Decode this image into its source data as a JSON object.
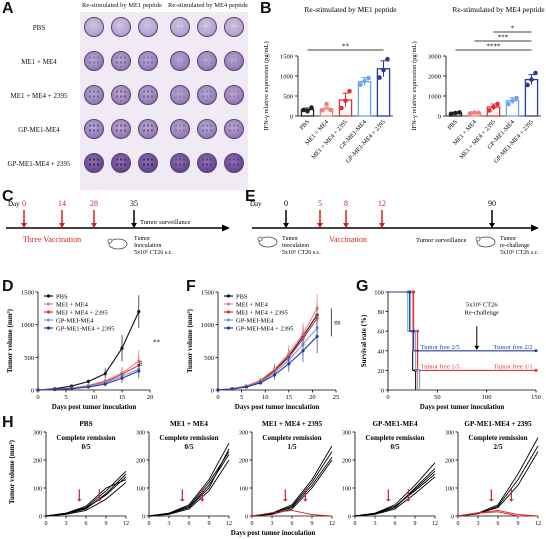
{
  "panels": {
    "A": "A",
    "B": "B",
    "C": "C",
    "D": "D",
    "E": "E",
    "F": "F",
    "G": "G",
    "H": "H"
  },
  "elispot": {
    "col_headers": [
      "Re-stimulated by ME1 peptide",
      "Re-stimulated by ME4 peptide"
    ],
    "rows": [
      "PBS",
      "ME1 + ME4",
      "ME1 + ME4 + 2395",
      "GP-ME1-ME4",
      "GP-ME1-ME4 + 2395"
    ]
  },
  "chart_data": [
    {
      "id": "B1",
      "type": "bar",
      "title": "Re-stimulated by ME1 peptide",
      "ylabel": "IFN-γ relative expression (pg/mL)",
      "categories": [
        "PBS",
        "ME1 + ME4",
        "ME1 + ME4 + 2395",
        "GP-ME1-ME4",
        "GP-ME1-ME4 + 2395"
      ],
      "values": [
        160,
        180,
        400,
        860,
        1180
      ],
      "errors": [
        40,
        40,
        170,
        100,
        200
      ],
      "points": [
        [
          150,
          120,
          210
        ],
        [
          140,
          300,
          150
        ],
        [
          200,
          380,
          620
        ],
        [
          780,
          870,
          950
        ],
        [
          960,
          1150,
          1420
        ]
      ],
      "colors": [
        "#222222",
        "#f08080",
        "#e03030",
        "#6aa6e8",
        "#2a3a9a"
      ],
      "ylim": [
        0,
        1500
      ],
      "yticks": [
        0,
        500,
        1000,
        1500
      ],
      "significance": [
        {
          "from": 0,
          "to": 4,
          "label": "**"
        }
      ]
    },
    {
      "id": "B2",
      "type": "bar",
      "title": "Re-stimulated by ME4 peptide",
      "ylabel": "IFN-γ relative expression (pg/mL)",
      "categories": [
        "PBS",
        "ME1 + ME4",
        "ME1 + ME4 + 2395",
        "GP-ME1-ME4",
        "GP-ME1-ME4 + 2395"
      ],
      "values": [
        150,
        160,
        450,
        760,
        1820
      ],
      "errors": [
        30,
        20,
        150,
        150,
        250
      ],
      "points": [
        [
          110,
          150,
          180
        ],
        [
          140,
          170,
          160
        ],
        [
          280,
          450,
          600
        ],
        [
          600,
          760,
          900
        ],
        [
          1550,
          1820,
          2150
        ]
      ],
      "colors": [
        "#222222",
        "#f08080",
        "#e03030",
        "#6aa6e8",
        "#2a3a9a"
      ],
      "ylim": [
        0,
        3000
      ],
      "yticks": [
        0,
        1000,
        2000,
        3000
      ],
      "significance": [
        {
          "from": 0,
          "to": 4,
          "label": "****"
        },
        {
          "from": 1,
          "to": 4,
          "label": "***"
        },
        {
          "from": 2,
          "to": 4,
          "label": "*"
        }
      ]
    },
    {
      "id": "D",
      "type": "line",
      "xlabel": "Days post tumor inoculation",
      "ylabel": "Tumor volume (mm³)",
      "xlim": [
        0,
        20
      ],
      "xticks": [
        0,
        5,
        10,
        15,
        20
      ],
      "ylim": [
        0,
        1500
      ],
      "yticks": [
        0,
        500,
        1000,
        1500
      ],
      "x": [
        0,
        3,
        6,
        9,
        12,
        15,
        18
      ],
      "series": [
        {
          "name": "PBS",
          "color": "#111111",
          "values": [
            0,
            20,
            60,
            130,
            250,
            640,
            1200
          ],
          "errors": [
            0,
            5,
            15,
            30,
            80,
            200,
            250
          ]
        },
        {
          "name": "MEI + ME4",
          "color": "#f08080",
          "values": [
            0,
            10,
            30,
            70,
            140,
            260,
            440
          ],
          "errors": [
            0,
            3,
            10,
            20,
            50,
            100,
            170
          ]
        },
        {
          "name": "MEI + ME4 + 2395",
          "color": "#e03030",
          "values": [
            0,
            10,
            25,
            60,
            120,
            240,
            380
          ],
          "errors": [
            0,
            3,
            10,
            20,
            40,
            90,
            150
          ]
        },
        {
          "name": "GP-MEI-ME4",
          "color": "#6aa6e8",
          "values": [
            0,
            10,
            25,
            55,
            110,
            210,
            320
          ],
          "errors": [
            0,
            3,
            8,
            15,
            40,
            80,
            120
          ]
        },
        {
          "name": "GP-ME1-ME4 + 2395",
          "color": "#2a3a9a",
          "values": [
            0,
            8,
            20,
            45,
            90,
            180,
            290
          ],
          "errors": [
            0,
            3,
            8,
            15,
            35,
            70,
            110
          ]
        }
      ],
      "annotations": [
        "**",
        "ns"
      ]
    },
    {
      "id": "F",
      "type": "line",
      "xlabel": "Days post tumor inoculation",
      "ylabel": "Tumor volume (mm³)",
      "xlim": [
        0,
        25
      ],
      "xticks": [
        0,
        5,
        10,
        15,
        20,
        25
      ],
      "ylim": [
        0,
        1500
      ],
      "yticks": [
        0,
        500,
        1000,
        1500
      ],
      "x": [
        0,
        3,
        6,
        9,
        12,
        15,
        18,
        21
      ],
      "series": [
        {
          "name": "PBS",
          "color": "#111111",
          "values": [
            0,
            20,
            60,
            140,
            300,
            520,
            820,
            1150
          ],
          "errors": [
            0,
            5,
            15,
            40,
            80,
            120,
            160,
            200
          ]
        },
        {
          "name": "MEI + ME4",
          "color": "#f08080",
          "values": [
            0,
            20,
            60,
            150,
            320,
            560,
            860,
            1250
          ],
          "errors": [
            0,
            5,
            15,
            40,
            90,
            130,
            170,
            220
          ]
        },
        {
          "name": "MEI + ME4 + 2395",
          "color": "#e03030",
          "values": [
            0,
            18,
            55,
            130,
            290,
            500,
            780,
            1100
          ],
          "errors": [
            0,
            5,
            15,
            35,
            80,
            120,
            160,
            200
          ]
        },
        {
          "name": "GP-MEI-ME4",
          "color": "#6aa6e8",
          "values": [
            0,
            18,
            50,
            120,
            260,
            460,
            700,
            950
          ],
          "errors": [
            0,
            5,
            15,
            35,
            80,
            130,
            180,
            250
          ]
        },
        {
          "name": "GP-MEI-ME4 + 2395",
          "color": "#2a3a9a",
          "values": [
            0,
            15,
            45,
            110,
            230,
            400,
            600,
            820
          ],
          "errors": [
            0,
            5,
            12,
            30,
            70,
            120,
            170,
            260
          ]
        }
      ],
      "annotations": [
        "ns"
      ]
    },
    {
      "id": "G",
      "type": "line",
      "xlabel": "Days post tumor inoculation",
      "ylabel": "Survival rate (%)",
      "xlim": [
        0,
        150
      ],
      "xticks": [
        0,
        50,
        100,
        150
      ],
      "ylim": [
        0,
        100
      ],
      "yticks": [
        0,
        20,
        40,
        60,
        80,
        100
      ],
      "series": [
        {
          "name": "PBS",
          "color": "#111111",
          "x": [
            0,
            22,
            22,
            25,
            25,
            28,
            28
          ],
          "values": [
            100,
            100,
            60,
            60,
            20,
            20,
            0
          ]
        },
        {
          "name": "MEI + ME4",
          "color": "#f08080",
          "x": [
            0,
            25,
            25,
            30,
            30
          ],
          "values": [
            100,
            100,
            40,
            40,
            0
          ]
        },
        {
          "name": "MEI + ME4 + 2395",
          "color": "#e03030",
          "x": [
            0,
            26,
            26,
            30,
            30,
            150
          ],
          "values": [
            100,
            100,
            60,
            60,
            20,
            20
          ]
        },
        {
          "name": "GP-MEI-ME4",
          "color": "#6aa6e8",
          "x": [
            0,
            20,
            20,
            28,
            28,
            32,
            32
          ],
          "values": [
            100,
            100,
            60,
            60,
            20,
            20,
            0
          ]
        },
        {
          "name": "GP-MEI-ME4 + 2395",
          "color": "#2a3a9a",
          "x": [
            0,
            22,
            22,
            26,
            26,
            150
          ],
          "values": [
            100,
            100,
            60,
            60,
            40,
            40
          ]
        }
      ],
      "annotations": [
        "Tumor free 2/5",
        "Tumor free 2/2",
        "Tumor free 1/5",
        "Tumor free 1/1",
        "5x10⁵ CT26",
        "Re-challenge"
      ]
    },
    {
      "id": "H",
      "type": "line",
      "xlabel": "Days post tumor inoculation",
      "ylabel": "Tumor volume (mm³)",
      "xlim": [
        0,
        12
      ],
      "xticks": [
        0,
        3,
        6,
        9,
        12
      ],
      "ylim": [
        0,
        300
      ],
      "yticks": [
        0,
        100,
        200,
        300
      ],
      "x": [
        0,
        3,
        6,
        9,
        12
      ],
      "groups": [
        {
          "title": "PBS",
          "remission_label": "Complete remission",
          "remission": "0/5",
          "curves": [
            [
              0,
              10,
              30,
              90,
              160
            ],
            [
              0,
              8,
              25,
              80,
              150
            ],
            [
              0,
              10,
              35,
              100,
              130
            ],
            [
              0,
              6,
              20,
              60,
              120
            ],
            [
              0,
              9,
              28,
              75,
              140
            ]
          ]
        },
        {
          "title": "ME1 + ME4",
          "remission_label": "Complete remission",
          "remission": "0/5",
          "curves": [
            [
              0,
              10,
              40,
              130,
              260
            ],
            [
              0,
              8,
              30,
              110,
              220
            ],
            [
              0,
              10,
              35,
              120,
              230
            ],
            [
              0,
              6,
              25,
              90,
              200
            ],
            [
              0,
              9,
              30,
              100,
              240
            ]
          ]
        },
        {
          "title": "ME1 + ME4 + 2395",
          "remission_label": "Complete remission",
          "remission": "1/5",
          "curves": [
            [
              0,
              10,
              40,
              130,
              250
            ],
            [
              0,
              8,
              35,
              120,
              230
            ],
            [
              0,
              10,
              30,
              110,
              210
            ],
            [
              0,
              6,
              25,
              100,
              200
            ],
            [
              0,
              12,
              20,
              5,
              0
            ]
          ]
        },
        {
          "title": "GP-ME1-ME4",
          "remission_label": "Complete remission",
          "remission": "0/5",
          "curves": [
            [
              0,
              10,
              40,
              110,
              190
            ],
            [
              0,
              8,
              30,
              100,
              170
            ],
            [
              0,
              10,
              35,
              90,
              150
            ],
            [
              0,
              6,
              25,
              80,
              140
            ],
            [
              0,
              9,
              30,
              95,
              160
            ]
          ]
        },
        {
          "title": "GP-ME1-ME4 + 2395",
          "remission_label": "Complete remission",
          "remission": "2/5",
          "curves": [
            [
              0,
              10,
              40,
              150,
              280
            ],
            [
              0,
              8,
              35,
              130,
              250
            ],
            [
              0,
              10,
              30,
              110,
              230
            ],
            [
              0,
              12,
              20,
              5,
              0
            ],
            [
              0,
              10,
              15,
              0,
              0
            ]
          ]
        }
      ]
    }
  ],
  "timeline_C": {
    "day_label": "Day",
    "days": [
      "0",
      "14",
      "28",
      "35"
    ],
    "vaccination": "Three Vaccination",
    "surveillance": "Tumor surveillance",
    "inoculation_1": "Tumor",
    "inoculation_2": "Inoculation",
    "inoculation_3": "5x10⁵ CT26 s.c."
  },
  "timeline_E": {
    "day_label": "Day",
    "days": [
      "0",
      "5",
      "8",
      "12",
      "90"
    ],
    "vaccination": "Vaccination",
    "surveillance": "Tumor surveillance",
    "inoculation_1": "Tumor",
    "inoculation_2": "inoculation",
    "inoculation_3": "5x10⁵ CT26 s.c.",
    "rechallenge_1": "Tumor",
    "rechallenge_2": "re-challenge",
    "rechallenge_3": "5x10⁵ CT26 s.c."
  }
}
